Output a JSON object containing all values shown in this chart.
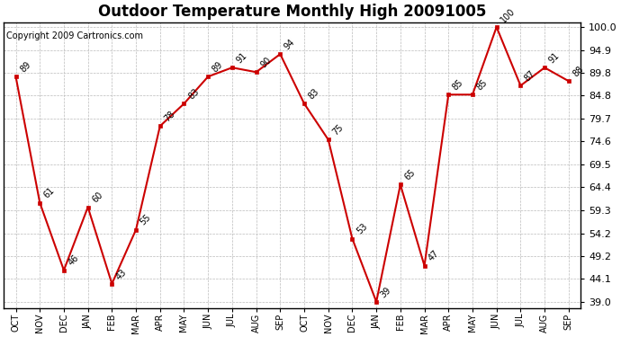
{
  "title": "Outdoor Temperature Monthly High 20091005",
  "copyright": "Copyright 2009 Cartronics.com",
  "months": [
    "OCT",
    "NOV",
    "DEC",
    "JAN",
    "FEB",
    "MAR",
    "APR",
    "MAY",
    "JUN",
    "JUL",
    "AUG",
    "SEP",
    "OCT",
    "NOV",
    "DEC",
    "JAN",
    "FEB",
    "MAR",
    "APR",
    "MAY",
    "JUN",
    "JUL",
    "AUG",
    "SEP"
  ],
  "values": [
    89,
    61,
    46,
    60,
    43,
    55,
    78,
    83,
    89,
    91,
    90,
    94,
    83,
    75,
    53,
    39,
    65,
    47,
    85,
    85,
    100,
    87,
    91,
    88
  ],
  "line_color": "#CC0000",
  "marker_color": "#CC0000",
  "background_color": "#FFFFFF",
  "grid_color": "#BBBBBB",
  "ylim_min": 39.0,
  "ylim_max": 100.0,
  "yticks": [
    39.0,
    44.1,
    49.2,
    54.2,
    59.3,
    64.4,
    69.5,
    74.6,
    79.7,
    84.8,
    89.8,
    94.9,
    100.0
  ],
  "title_fontsize": 12,
  "copyright_fontsize": 7,
  "label_fontsize": 7
}
